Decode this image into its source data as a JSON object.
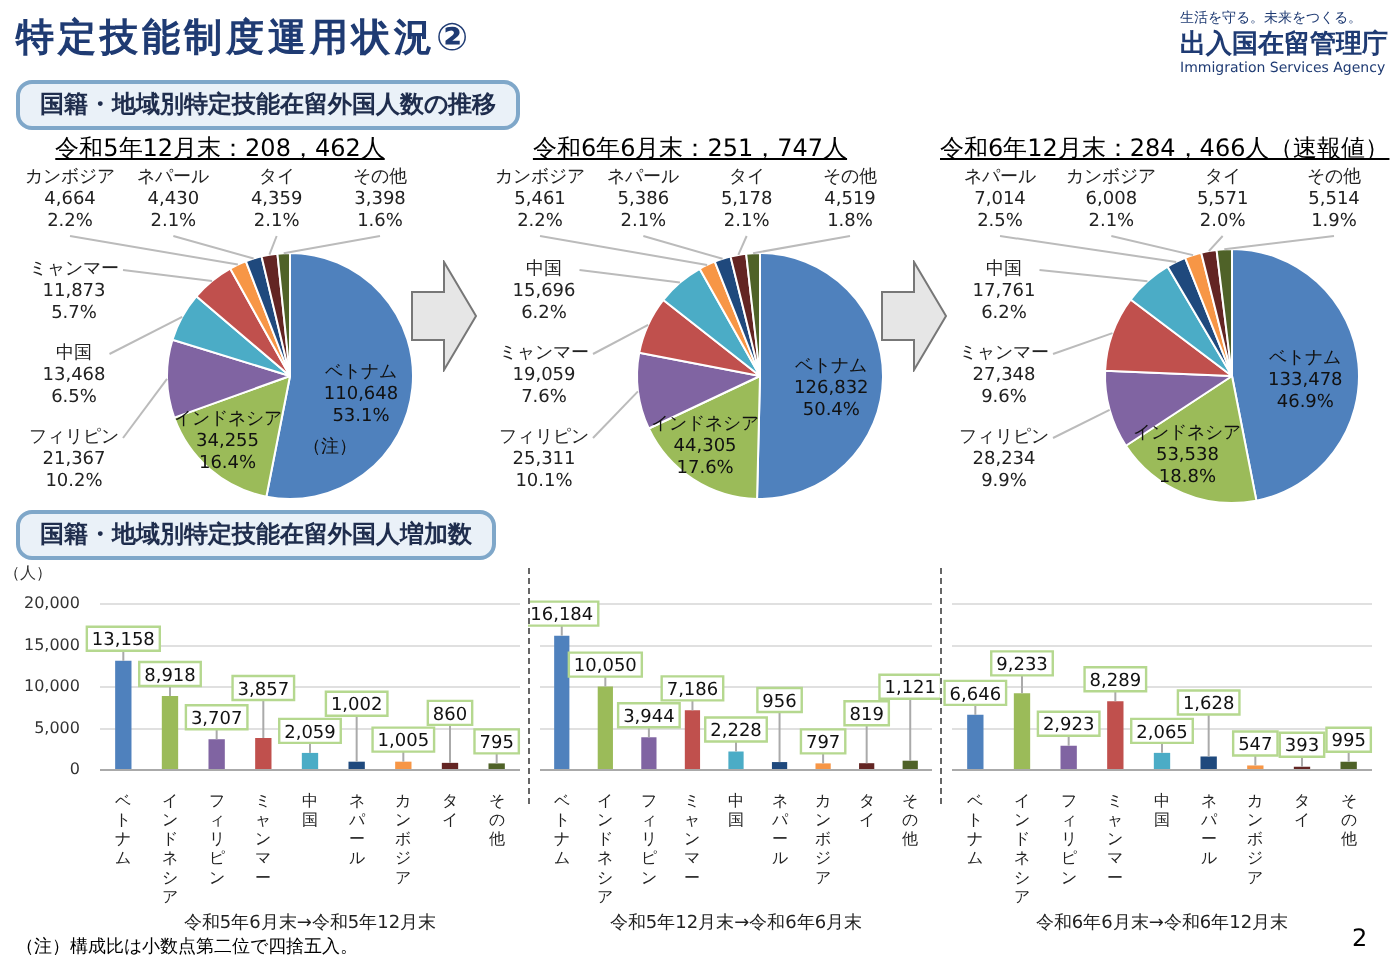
{
  "chart_data": [
    {
      "type": "pie",
      "title": "令和5年12月末：208，462人",
      "categories": [
        "ベトナム",
        "インドネシア",
        "フィリピン",
        "中国",
        "ミャンマー",
        "カンボジア",
        "ネパール",
        "タイ",
        "その他"
      ],
      "values": [
        110648,
        34255,
        21367,
        13468,
        11873,
        4664,
        4430,
        4359,
        3398
      ],
      "colors": [
        "#4f81bd",
        "#9bbb59",
        "#8064a2",
        "#4bacc6",
        "#c0504d",
        "#f79646",
        "#1f497d",
        "#632523",
        "#4f6228"
      ],
      "value_labels": [
        "110,648\n53.1%",
        "34,255\n16.4%",
        "21,367\n10.2%",
        "13,468\n6.5%",
        "11,873\n5.7%",
        "4,664\n2.2%",
        "4,430\n2.1%",
        "4,359\n2.1%",
        "3,398\n1.6%"
      ],
      "annotations": [
        "特定技能制度運用状況②",
        "国籍・地域別特定技能在留外国人数の推移",
        "生活を守る。未来をつくる。",
        "出入国在留管理庁",
        "Immigration Services Agency",
        {
          "text": "（注）",
          "x": "ベトナム"
        }
      ]
    },
    {
      "type": "pie",
      "title": "令和6年6月末：251，747人",
      "categories": [
        "ベトナム",
        "インドネシア",
        "フィリピン",
        "ミャンマー",
        "中国",
        "カンボジア",
        "ネパール",
        "タイ",
        "その他"
      ],
      "values": [
        126832,
        44305,
        25311,
        19059,
        15696,
        5461,
        5386,
        5178,
        4519
      ],
      "colors": [
        "#4f81bd",
        "#9bbb59",
        "#8064a2",
        "#c0504d",
        "#4bacc6",
        "#f79646",
        "#1f497d",
        "#632523",
        "#4f6228"
      ],
      "value_labels": [
        "126,832\n50.4%",
        "44,305\n17.6%",
        "25,311\n10.1%",
        "19,059\n7.6%",
        "15,696\n6.2%",
        "5,461\n2.2%",
        "5,386\n2.1%",
        "5,178\n2.1%",
        "4,519\n1.8%"
      ]
    },
    {
      "type": "pie",
      "title": "令和6年12月末：284，466人（速報値）",
      "categories": [
        "ベトナム",
        "インドネシア",
        "フィリピン",
        "ミャンマー",
        "中国",
        "ネパール",
        "カンボジア",
        "タイ",
        "その他"
      ],
      "values": [
        133478,
        53538,
        28234,
        27348,
        17761,
        7014,
        6008,
        5571,
        5514
      ],
      "colors": [
        "#4f81bd",
        "#9bbb59",
        "#8064a2",
        "#c0504d",
        "#4bacc6",
        "#1f497d",
        "#f79646",
        "#632523",
        "#4f6228"
      ],
      "value_labels": [
        "133,478\n46.9%",
        "53,538\n18.8%",
        "28,234\n9.9%",
        "27,348\n9.6%",
        "17,761\n6.2%",
        "7,014\n2.5%",
        "6,008\n2.1%",
        "5,571\n2.0%",
        "5,514\n1.9%"
      ]
    },
    {
      "type": "bar",
      "xlabel": "令和5年6月末→令和5年12月末",
      "ylabel": "（人）",
      "categories": [
        "ベトナム",
        "インドネシア",
        "フィリピン",
        "ミャンマー",
        "中国",
        "ネパール",
        "カンボジア",
        "タイ",
        "その他"
      ],
      "values": [
        13158,
        8918,
        3707,
        3857,
        2059,
        1002,
        1005,
        860,
        795
      ],
      "colors": [
        "#4f81bd",
        "#9bbb59",
        "#8064a2",
        "#c0504d",
        "#4bacc6",
        "#1f497d",
        "#f79646",
        "#632523",
        "#4f6228"
      ],
      "value_labels": [
        "13,158",
        "8,918",
        "3,707",
        "3,857",
        "2,059",
        "1,002",
        "1,005",
        "860",
        "795"
      ],
      "ylim": [
        0,
        20000
      ],
      "yticks": [
        0,
        {
          "value": 5000,
          "label": "5,000"
        },
        {
          "value": 10000,
          "label": "10,000"
        },
        {
          "value": 15000,
          "label": "15,000"
        },
        {
          "value": 20000,
          "label": "20,000"
        }
      ],
      "grid": "y",
      "annotations": [
        "国籍・地域別特定技能在留外国人増加数",
        "（注）構成比は小数点第二位で四捨五入。"
      ]
    },
    {
      "type": "bar",
      "xlabel": "令和5年12月末→令和6年6月末",
      "categories": [
        "ベトナム",
        "インドネシア",
        "フィリピン",
        "ミャンマー",
        "中国",
        "ネパール",
        "カンボジア",
        "タイ",
        "その他"
      ],
      "values": [
        16184,
        10050,
        3944,
        7186,
        2228,
        956,
        797,
        819,
        1121
      ],
      "colors": [
        "#4f81bd",
        "#9bbb59",
        "#8064a2",
        "#c0504d",
        "#4bacc6",
        "#1f497d",
        "#f79646",
        "#632523",
        "#4f6228"
      ],
      "value_labels": [
        "16,184",
        "10,050",
        "3,944",
        "7,186",
        "2,228",
        "956",
        "797",
        "819",
        "1,121"
      ],
      "ylim": [
        0,
        20000
      ],
      "yticks": [
        {
          "value": 0,
          "label": null
        },
        {
          "value": 5000,
          "label": null
        },
        {
          "value": 10000,
          "label": null
        },
        {
          "value": 15000,
          "label": null
        },
        {
          "value": 20000,
          "label": null
        }
      ],
      "grid": "y",
      "tick_labels": "x"
    },
    {
      "type": "bar",
      "xlabel": "令和6年6月末→令和6年12月末",
      "categories": [
        "ベトナム",
        "インドネシア",
        "フィリピン",
        "ミャンマー",
        "中国",
        "ネパール",
        "カンボジア",
        "タイ",
        "その他"
      ],
      "values": [
        6646,
        9233,
        2923,
        8289,
        2065,
        1628,
        547,
        393,
        995
      ],
      "colors": [
        "#4f81bd",
        "#9bbb59",
        "#8064a2",
        "#c0504d",
        "#4bacc6",
        "#1f497d",
        "#f79646",
        "#632523",
        "#4f6228"
      ],
      "value_labels": [
        "6,646",
        "9,233",
        "2,923",
        "8,289",
        "2,065",
        "1,628",
        "547",
        "393",
        "995"
      ],
      "ylim": [
        0,
        20000
      ],
      "yticks": [
        {
          "value": 0,
          "label": null
        },
        {
          "value": 5000,
          "label": null
        },
        {
          "value": 10000,
          "label": null
        },
        {
          "value": 15000,
          "label": null
        },
        {
          "value": 20000,
          "label": null
        }
      ],
      "grid": "y",
      "tick_labels": "x",
      "annotations": [
        "2"
      ]
    }
  ]
}
